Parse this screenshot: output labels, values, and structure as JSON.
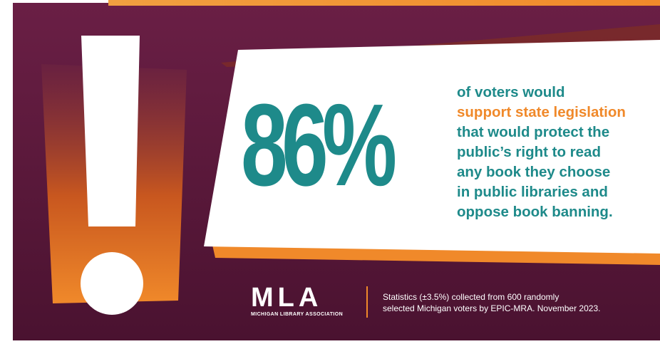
{
  "headline": {
    "number": "86%"
  },
  "statement": {
    "lines": [
      "of voters would",
      "support state legislation",
      "that would protect the",
      "public’s right to read",
      "any book they choose",
      "in public libraries and",
      "oppose book banning."
    ],
    "highlight_line_index": 1
  },
  "logo": {
    "mark": "MLA",
    "caption": "MICHIGAN LIBRARY ASSOCIATION",
    "icon": "mla-logo-icon"
  },
  "source": {
    "lines": [
      "Statistics (±3.5%) collected from 600 randomly",
      "selected Michigan voters by EPIC-MRA. November 2023."
    ]
  },
  "colors": {
    "background": "#5a1a3a",
    "teal": "#1e8a8a",
    "orange": "#f0892a",
    "panel": "#ffffff"
  },
  "icons": [
    "exclamation-icon"
  ]
}
